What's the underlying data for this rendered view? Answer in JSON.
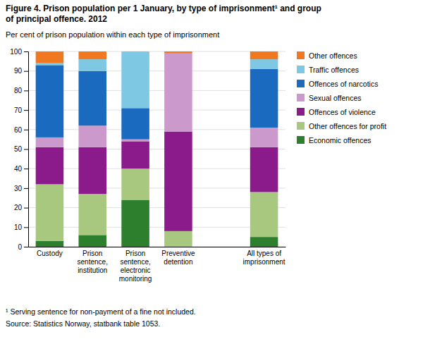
{
  "chart_data": {
    "type": "bar",
    "stacked": true,
    "title": "Figure 4. Prison population per 1 January, by type of imprisonment¹ and group\nof principal offence. 2012",
    "subtitle": "Per cent of prison population within each type of imprisonment",
    "categories": [
      "Custody",
      "Prison\nsentence,\ninstitution",
      "Prison\nsentence,\nelectronic\nmonitoring",
      "Preventive\ndetention",
      null,
      "All types of\nimprisonment"
    ],
    "series": [
      {
        "name": "Economic offences",
        "color": "#2d7f2d",
        "values": [
          3,
          6,
          24,
          0,
          0,
          5
        ]
      },
      {
        "name": "Other offences for profit",
        "color": "#a8c880",
        "values": [
          29,
          21,
          16,
          8,
          0,
          23
        ]
      },
      {
        "name": "Offences of violence",
        "color": "#8b1a8b",
        "values": [
          19,
          24,
          14,
          51,
          0,
          23
        ]
      },
      {
        "name": "Sexual offences",
        "color": "#cc99cc",
        "values": [
          5,
          11,
          1,
          40,
          0,
          10
        ]
      },
      {
        "name": "Offences of narcotics",
        "color": "#1a6bbf",
        "values": [
          37,
          28,
          16,
          0,
          0,
          30
        ]
      },
      {
        "name": "Traffic offences",
        "color": "#7ec8e3",
        "values": [
          1,
          6,
          29,
          0,
          0,
          5
        ]
      },
      {
        "name": "Other offences",
        "color": "#f07820",
        "values": [
          6,
          4,
          0,
          1,
          0,
          4
        ]
      }
    ],
    "ylim": [
      0,
      100
    ],
    "yticks": [
      0,
      10,
      20,
      30,
      40,
      50,
      60,
      70,
      80,
      90,
      100
    ],
    "grid": true,
    "legend": "right",
    "annotations": [
      "¹ Serving sentence for non-payment of a fine not included.",
      "Source: Statistics Norway, statbank table 1053."
    ]
  }
}
